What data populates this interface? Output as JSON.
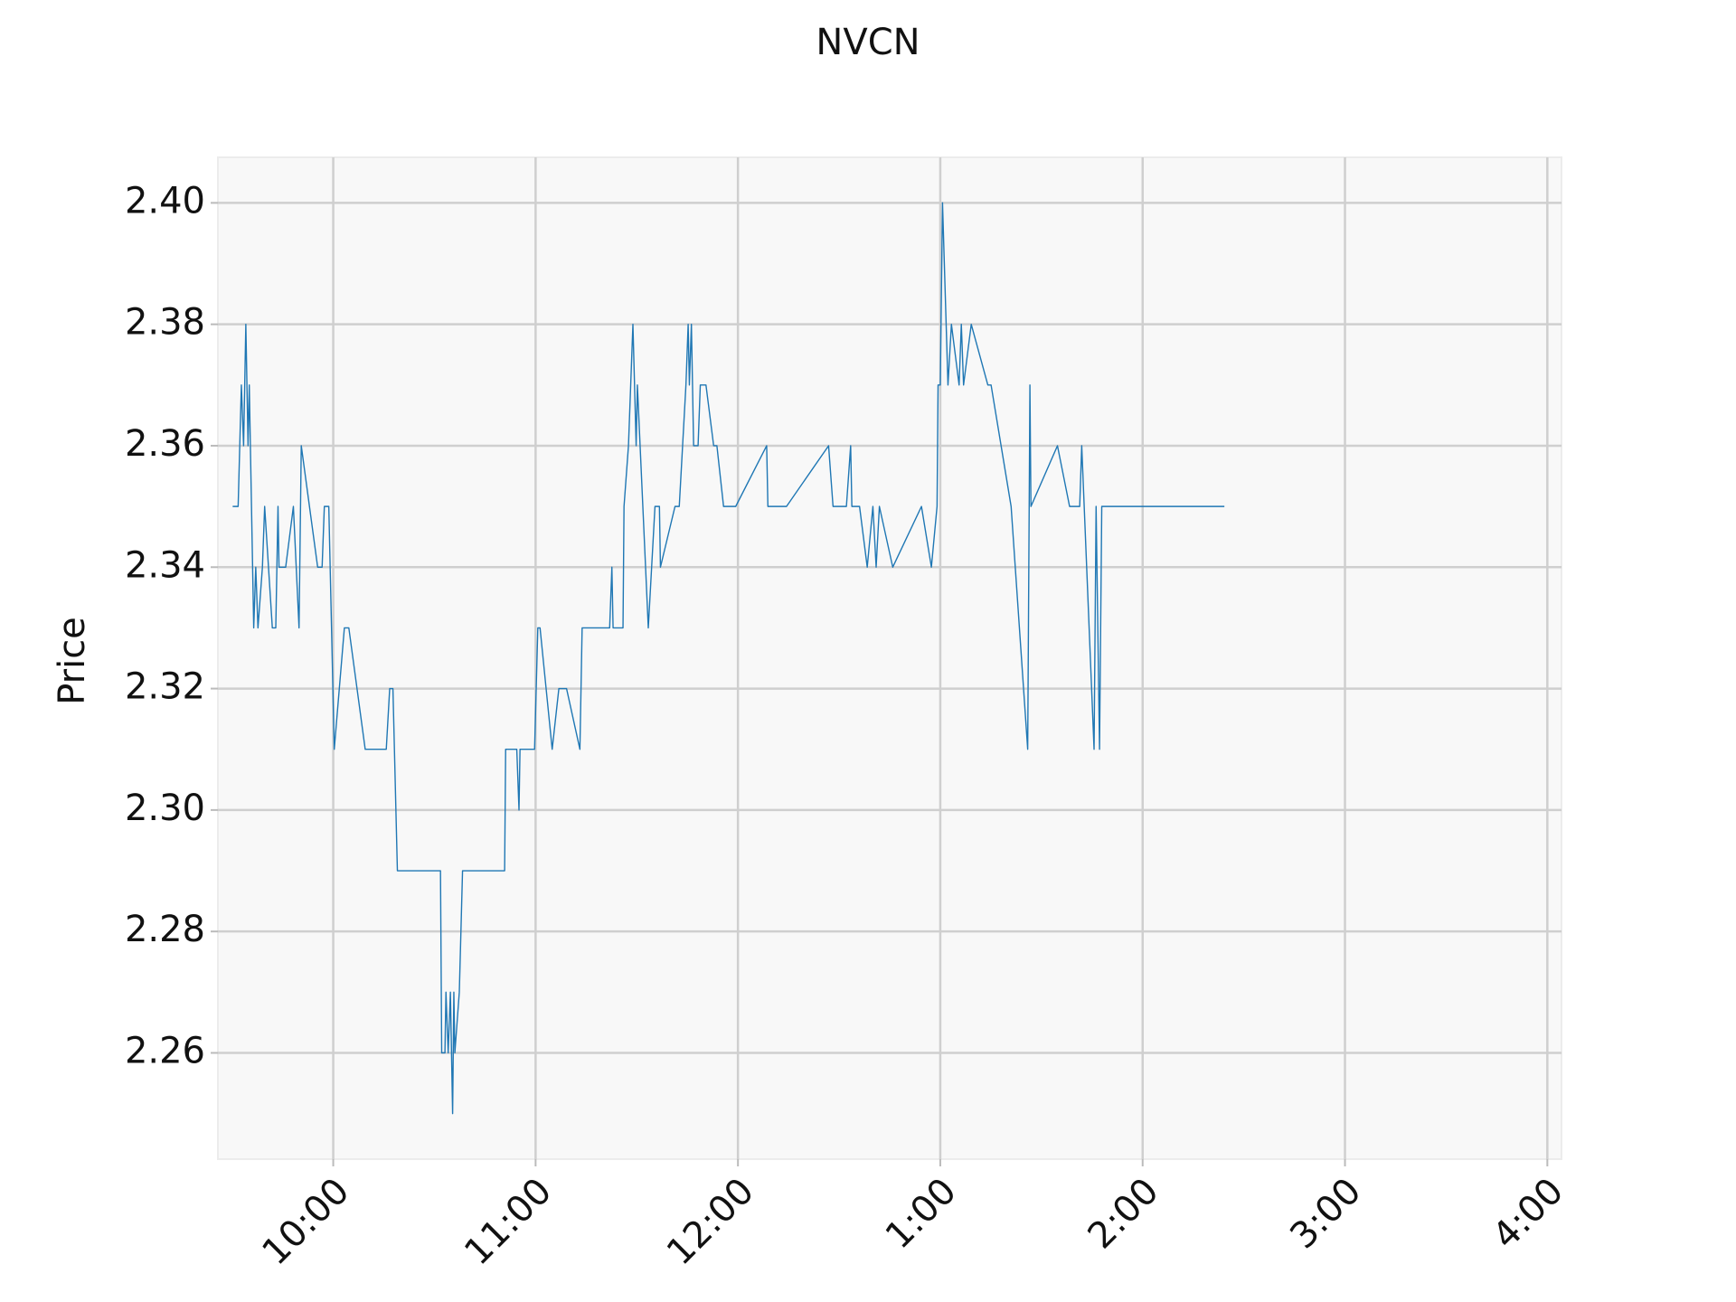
{
  "chart_data": {
    "type": "line",
    "title": "NVCN",
    "y_label": "Price",
    "color": "#1f77b4",
    "grid": true,
    "x": [
      9.503,
      9.53,
      9.546,
      9.557,
      9.568,
      9.579,
      9.585,
      9.607,
      9.617,
      9.628,
      9.65,
      9.661,
      9.699,
      9.716,
      9.727,
      9.732,
      9.765,
      9.803,
      9.831,
      9.842,
      9.923,
      9.945,
      9.956,
      9.978,
      10.005,
      10.055,
      10.077,
      10.158,
      10.262,
      10.279,
      10.295,
      10.317,
      10.53,
      10.536,
      10.552,
      10.557,
      10.568,
      10.579,
      10.59,
      10.596,
      10.601,
      10.623,
      10.639,
      10.847,
      10.852,
      10.907,
      10.918,
      10.923,
      10.995,
      11.011,
      11.022,
      11.082,
      11.115,
      11.153,
      11.219,
      11.23,
      11.366,
      11.377,
      11.383,
      11.432,
      11.437,
      11.459,
      11.481,
      11.497,
      11.503,
      11.557,
      11.59,
      11.612,
      11.617,
      11.689,
      11.71,
      11.743,
      11.754,
      11.76,
      11.77,
      11.781,
      11.803,
      11.814,
      11.842,
      11.88,
      11.896,
      11.929,
      11.989,
      12.142,
      12.148,
      12.24,
      12.448,
      12.47,
      12.536,
      12.557,
      12.563,
      12.601,
      12.639,
      12.667,
      12.683,
      12.699,
      12.765,
      12.907,
      12.956,
      12.984,
      12.989,
      13.0,
      13.011,
      13.038,
      13.055,
      13.093,
      13.104,
      13.115,
      13.153,
      13.235,
      13.251,
      13.35,
      13.432,
      13.443,
      13.448,
      13.579,
      13.639,
      13.689,
      13.699,
      13.76,
      13.77,
      13.787,
      13.798,
      14.404
    ],
    "values": [
      2.35,
      2.35,
      2.37,
      2.36,
      2.38,
      2.36,
      2.37,
      2.33,
      2.34,
      2.33,
      2.34,
      2.35,
      2.33,
      2.33,
      2.35,
      2.34,
      2.34,
      2.35,
      2.33,
      2.36,
      2.34,
      2.34,
      2.35,
      2.35,
      2.31,
      2.33,
      2.33,
      2.31,
      2.31,
      2.32,
      2.32,
      2.29,
      2.29,
      2.26,
      2.26,
      2.27,
      2.26,
      2.27,
      2.25,
      2.27,
      2.26,
      2.27,
      2.29,
      2.29,
      2.31,
      2.31,
      2.3,
      2.31,
      2.31,
      2.33,
      2.33,
      2.31,
      2.32,
      2.32,
      2.31,
      2.33,
      2.33,
      2.34,
      2.33,
      2.33,
      2.35,
      2.36,
      2.38,
      2.36,
      2.37,
      2.33,
      2.35,
      2.35,
      2.34,
      2.35,
      2.35,
      2.37,
      2.38,
      2.37,
      2.38,
      2.36,
      2.36,
      2.37,
      2.37,
      2.36,
      2.36,
      2.35,
      2.35,
      2.36,
      2.35,
      2.35,
      2.36,
      2.35,
      2.35,
      2.36,
      2.35,
      2.35,
      2.34,
      2.35,
      2.34,
      2.35,
      2.34,
      2.35,
      2.34,
      2.35,
      2.37,
      2.37,
      2.4,
      2.37,
      2.38,
      2.37,
      2.38,
      2.37,
      2.38,
      2.37,
      2.37,
      2.35,
      2.31,
      2.37,
      2.35,
      2.36,
      2.35,
      2.35,
      2.36,
      2.31,
      2.35,
      2.31,
      2.35,
      2.35
    ],
    "xlim": [
      9.43,
      16.07
    ],
    "xticks": [
      {
        "value": 10,
        "label": "10:00"
      },
      {
        "value": 11,
        "label": "11:00"
      },
      {
        "value": 12,
        "label": "12:00"
      },
      {
        "value": 13,
        "label": "1:00"
      },
      {
        "value": 14,
        "label": "2:00"
      },
      {
        "value": 15,
        "label": "3:00"
      },
      {
        "value": 16,
        "label": "4:00"
      }
    ],
    "ylim": [
      2.2425,
      2.4075
    ],
    "yticks": [
      2.26,
      2.28,
      {
        "value": 2.3,
        "label": "2.30"
      },
      2.32,
      2.34,
      2.36,
      2.38,
      {
        "value": 2.4,
        "label": "2.40"
      }
    ]
  }
}
